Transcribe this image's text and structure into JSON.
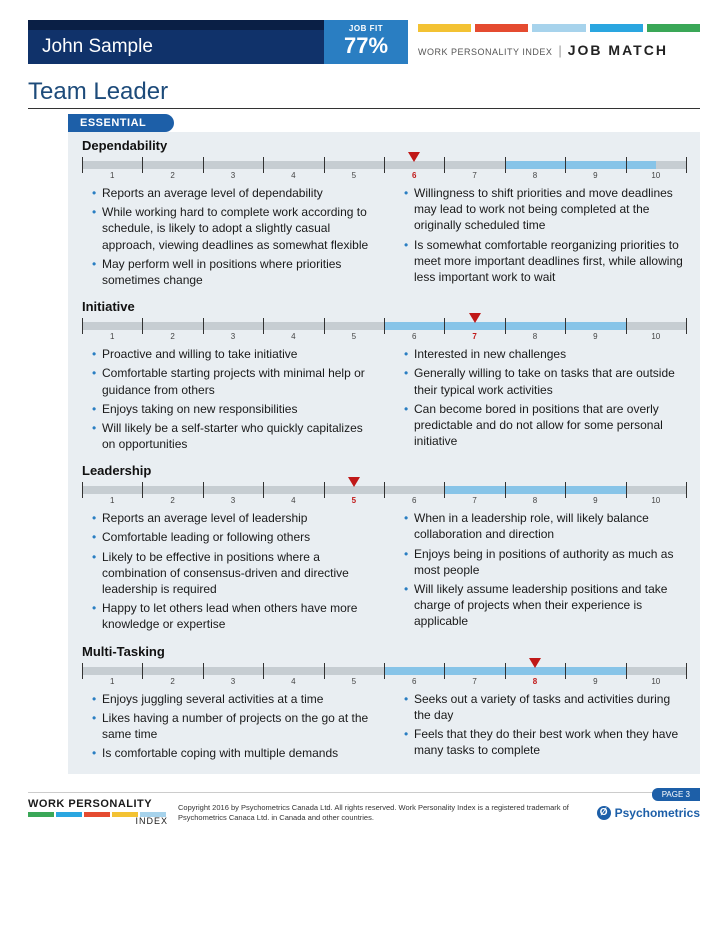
{
  "colors": {
    "navy": "#10326a",
    "darknavy": "#0a1f45",
    "blue": "#2a7ec2",
    "lightblue": "#87c4e8",
    "gray": "#c6cdd2",
    "red": "#c01818",
    "headerBars": [
      "#f3c233",
      "#e54b30",
      "#a7d3ec",
      "#2aa6e0",
      "#3aa757"
    ]
  },
  "header": {
    "name": "John Sample",
    "fit_label": "JOB FIT",
    "fit_value": "77%",
    "wpi_label": "WORK PERSONALITY INDEX",
    "match_label": "JOB MATCH"
  },
  "title": "Team Leader",
  "essential_label": "ESSENTIAL",
  "scale": {
    "min": 1,
    "max": 10
  },
  "sections": [
    {
      "title": "Dependability",
      "score": 6,
      "fill": [
        7.5,
        10
      ],
      "left": [
        "Reports an average level of dependability",
        "While working hard to complete work according to schedule, is likely to adopt a slightly casual approach, viewing deadlines as somewhat flexible",
        "May perform well in positions where priorities sometimes change"
      ],
      "right": [
        "Willingness to shift priorities and move deadlines may lead to work not being completed at the originally scheduled time",
        "Is somewhat comfortable reorganizing priorities to meet more important deadlines first, while allowing less important work to wait"
      ]
    },
    {
      "title": "Initiative",
      "score": 7,
      "fill": [
        5.5,
        9.5
      ],
      "left": [
        "Proactive and willing to take initiative",
        "Comfortable starting projects with minimal help or guidance from others",
        "Enjoys taking on new responsibilities",
        "Will likely be a self-starter who quickly capitalizes on opportunities"
      ],
      "right": [
        "Interested in new challenges",
        "Generally willing to take on tasks that are outside their typical work activities",
        "Can become bored in positions that are overly predictable and do not allow for some personal initiative"
      ]
    },
    {
      "title": "Leadership",
      "score": 5,
      "fill": [
        6.5,
        9.5
      ],
      "left": [
        "Reports an average level of leadership",
        "Comfortable leading or following others",
        "Likely to be effective in positions where a combination of consensus-driven and directive leadership is required",
        "Happy to let others lead when others have more knowledge or expertise"
      ],
      "right": [
        "When in a leadership role, will likely balance collaboration and direction",
        "Enjoys being in positions of authority as much as most people",
        "Will likely assume leadership positions and take charge of projects when their experience is applicable"
      ]
    },
    {
      "title": "Multi-Tasking",
      "score": 8,
      "fill": [
        5.5,
        9.5
      ],
      "left": [
        "Enjoys juggling several activities at a time",
        "Likes having a number of projects on the go at the same time",
        "Is comfortable coping with multiple demands"
      ],
      "right": [
        "Seeks out a variety of tasks and activities during the day",
        "Feels that they do their best work when they have many tasks to complete"
      ]
    }
  ],
  "footer": {
    "page_label": "PAGE 3",
    "wpi_top": "WORK PERSONALITY",
    "wpi_bottom": "INDEX",
    "copyright": "Copyright 2016 by Psychometrics Canada Ltd. All rights reserved. Work Personality Index is a registered trademark of Psychometrics Canaca Ltd. in Canada and other countries.",
    "brand": "Psychometrics",
    "footerBars": [
      "#3aa757",
      "#2aa6e0",
      "#e54b30",
      "#f3c233",
      "#a7d3ec"
    ]
  }
}
